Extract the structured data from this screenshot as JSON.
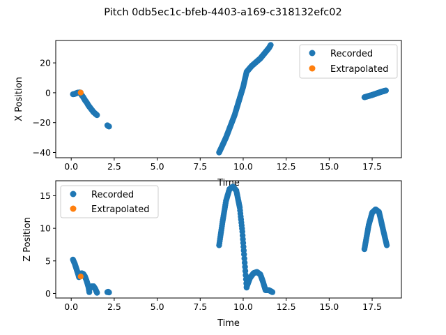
{
  "figure": {
    "suptitle": "Pitch 0db5ec1c-bfeb-4403-a169-c318132efc02"
  },
  "colors": {
    "recorded": "#1f77b4",
    "extrapolated": "#ff7f0e"
  },
  "chart_data": [
    {
      "type": "scatter",
      "xlabel": "Time",
      "ylabel": "X Position",
      "xlim": [
        -0.9,
        19.2
      ],
      "ylim": [
        -43.5,
        35
      ],
      "xticks": [
        0.0,
        2.5,
        5.0,
        7.5,
        10.0,
        12.5,
        15.0,
        17.5
      ],
      "xtick_labels": [
        "0.0",
        "2.5",
        "5.0",
        "7.5",
        "10.0",
        "12.5",
        "15.0",
        "17.5"
      ],
      "yticks": [
        -40,
        -20,
        0,
        20
      ],
      "ytick_labels": [
        "−40",
        "−20",
        "0",
        "20"
      ],
      "legend_position": "upper right",
      "series": [
        {
          "name": "Recorded",
          "color": "#1f77b4",
          "segments": [
            {
              "x": [
                0.1,
                0.2,
                0.3,
                0.4,
                0.5,
                0.55
              ],
              "y": [
                -1,
                -0.8,
                -0.3,
                0.1,
                0.2,
                0.1
              ]
            },
            {
              "x": [
                0.55,
                0.6,
                0.7,
                0.8,
                0.9,
                1.0,
                1.1,
                1.2,
                1.3,
                1.4,
                1.5
              ],
              "y": [
                -0.5,
                -1.5,
                -3,
                -5,
                -6.5,
                -8.5,
                -10,
                -11.5,
                -13,
                -14,
                -15
              ]
            },
            {
              "x": [
                2.1,
                2.15,
                2.2
              ],
              "y": [
                -21.8,
                -22.3,
                -22.6
              ]
            },
            {
              "x": [
                8.6,
                9.0,
                9.5,
                10.0,
                10.2,
                10.5,
                11.0,
                11.5,
                11.6
              ],
              "y": [
                -40,
                -30,
                -15,
                4,
                14,
                18,
                23,
                30,
                32
              ]
            },
            {
              "x": [
                17.05,
                17.5,
                18.0,
                18.3
              ],
              "y": [
                -3,
                -1.5,
                0.5,
                1.5
              ]
            }
          ]
        },
        {
          "name": "Extrapolated",
          "color": "#ff7f0e",
          "points": {
            "x": [
              0.55
            ],
            "y": [
              0.1
            ]
          }
        }
      ]
    },
    {
      "type": "scatter",
      "xlabel": "Time",
      "ylabel": "Z Position",
      "xlim": [
        -0.9,
        19.2
      ],
      "ylim": [
        -0.7,
        17.3
      ],
      "xticks": [
        0.0,
        2.5,
        5.0,
        7.5,
        10.0,
        12.5,
        15.0,
        17.5
      ],
      "xtick_labels": [
        "0.0",
        "2.5",
        "5.0",
        "7.5",
        "10.0",
        "12.5",
        "15.0",
        "17.5"
      ],
      "yticks": [
        0,
        5,
        10,
        15
      ],
      "ytick_labels": [
        "0",
        "5",
        "10",
        "15"
      ],
      "legend_position": "upper left",
      "series": [
        {
          "name": "Recorded",
          "color": "#1f77b4",
          "segments": [
            {
              "x": [
                0.1,
                0.2,
                0.3,
                0.4,
                0.45
              ],
              "y": [
                5.2,
                4.6,
                3.8,
                3.0,
                2.5
              ]
            },
            {
              "x": [
                0.55,
                0.6,
                0.7,
                0.8,
                0.9,
                1.0,
                1.05
              ],
              "y": [
                2.9,
                3.1,
                3.0,
                2.6,
                1.9,
                1.0,
                0.2
              ]
            },
            {
              "x": [
                1.1,
                1.2,
                1.3,
                1.4,
                1.5
              ],
              "y": [
                0.8,
                1.1,
                1.1,
                0.7,
                0.1
              ]
            },
            {
              "x": [
                2.1,
                2.15,
                2.2
              ],
              "y": [
                0.2,
                0.25,
                0.15
              ]
            },
            {
              "x": [
                8.6,
                8.8,
                9.0,
                9.2,
                9.4,
                9.6,
                9.8,
                9.95,
                10.05,
                10.2
              ],
              "y": [
                7.4,
                11,
                14.2,
                16,
                16.4,
                15.8,
                13.2,
                9.5,
                6,
                0.9
              ]
            },
            {
              "x": [
                10.2,
                10.4,
                10.6,
                10.8,
                11.0,
                11.15,
                11.3,
                11.5,
                11.7
              ],
              "y": [
                1,
                2.4,
                3.1,
                3.3,
                2.9,
                1.8,
                0.5,
                0.5,
                0.2
              ]
            },
            {
              "x": [
                17.05,
                17.3,
                17.5,
                17.7,
                17.9,
                18.1,
                18.35
              ],
              "y": [
                6.8,
                10.5,
                12.4,
                12.9,
                12.5,
                10.2,
                7.4
              ]
            }
          ]
        },
        {
          "name": "Extrapolated",
          "color": "#ff7f0e",
          "points": {
            "x": [
              0.55
            ],
            "y": [
              2.6
            ]
          }
        }
      ]
    }
  ]
}
